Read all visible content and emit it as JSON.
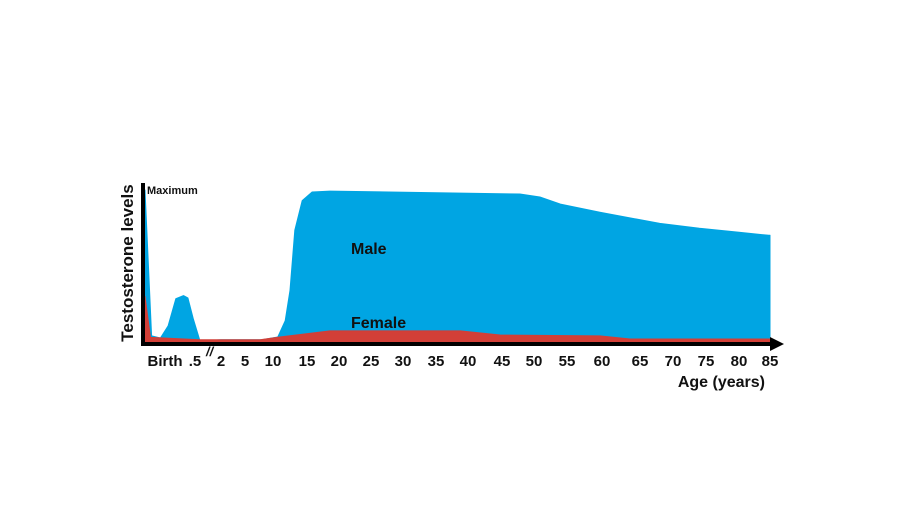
{
  "chart_data": {
    "type": "area",
    "title": "",
    "xlabel": "Age (years)",
    "ylabel": "Testosterone levels",
    "y_max_label": "Maximum",
    "axis_break_mark": "//",
    "x_tick_labels": [
      "Birth",
      ".5",
      "2",
      "5",
      "10",
      "15",
      "20",
      "25",
      "30",
      "35",
      "40",
      "45",
      "50",
      "55",
      "60",
      "65",
      "70",
      "75",
      "80",
      "85"
    ],
    "x_tick_values": [
      0,
      0.5,
      2,
      5,
      10,
      15,
      20,
      25,
      30,
      35,
      40,
      45,
      50,
      55,
      60,
      65,
      70,
      75,
      80,
      85
    ],
    "x_scale": "broken / non-uniform",
    "ylim": [
      0,
      100
    ],
    "grid": false,
    "legend": "inline labels",
    "series": [
      {
        "name": "Male",
        "color": "#00a5e3",
        "points": [
          [
            0,
            100
          ],
          [
            0.06,
            4
          ],
          [
            0.14,
            2.6
          ],
          [
            0.21,
            10.6
          ],
          [
            0.28,
            28.5
          ],
          [
            0.35,
            30.5
          ],
          [
            0.39,
            29
          ],
          [
            0.44,
            15
          ],
          [
            0.5,
            0.7
          ],
          [
            2,
            1.5
          ],
          [
            8,
            1.5
          ],
          [
            10.7,
            3.3
          ],
          [
            11.8,
            14
          ],
          [
            12.5,
            34
          ],
          [
            13.2,
            73.5
          ],
          [
            14.3,
            93
          ],
          [
            15.8,
            98.7
          ],
          [
            18.6,
            99.3
          ],
          [
            47.8,
            97.4
          ],
          [
            50.9,
            95.4
          ],
          [
            54,
            90.7
          ],
          [
            59.7,
            85.4
          ],
          [
            68,
            78
          ],
          [
            74,
            74.8
          ],
          [
            80,
            72.2
          ],
          [
            84.8,
            70.2
          ],
          [
            85,
            70.2
          ]
        ]
      },
      {
        "name": "Female",
        "color": "#d23f37",
        "points": [
          [
            0,
            30
          ],
          [
            0.05,
            3
          ],
          [
            0.5,
            1.5
          ],
          [
            7.7,
            1.5
          ],
          [
            11,
            3.3
          ],
          [
            18.6,
            7.3
          ],
          [
            38.8,
            7.3
          ],
          [
            44.7,
            4.6
          ],
          [
            59.7,
            4
          ],
          [
            63.7,
            2
          ],
          [
            85,
            2
          ]
        ]
      }
    ]
  }
}
